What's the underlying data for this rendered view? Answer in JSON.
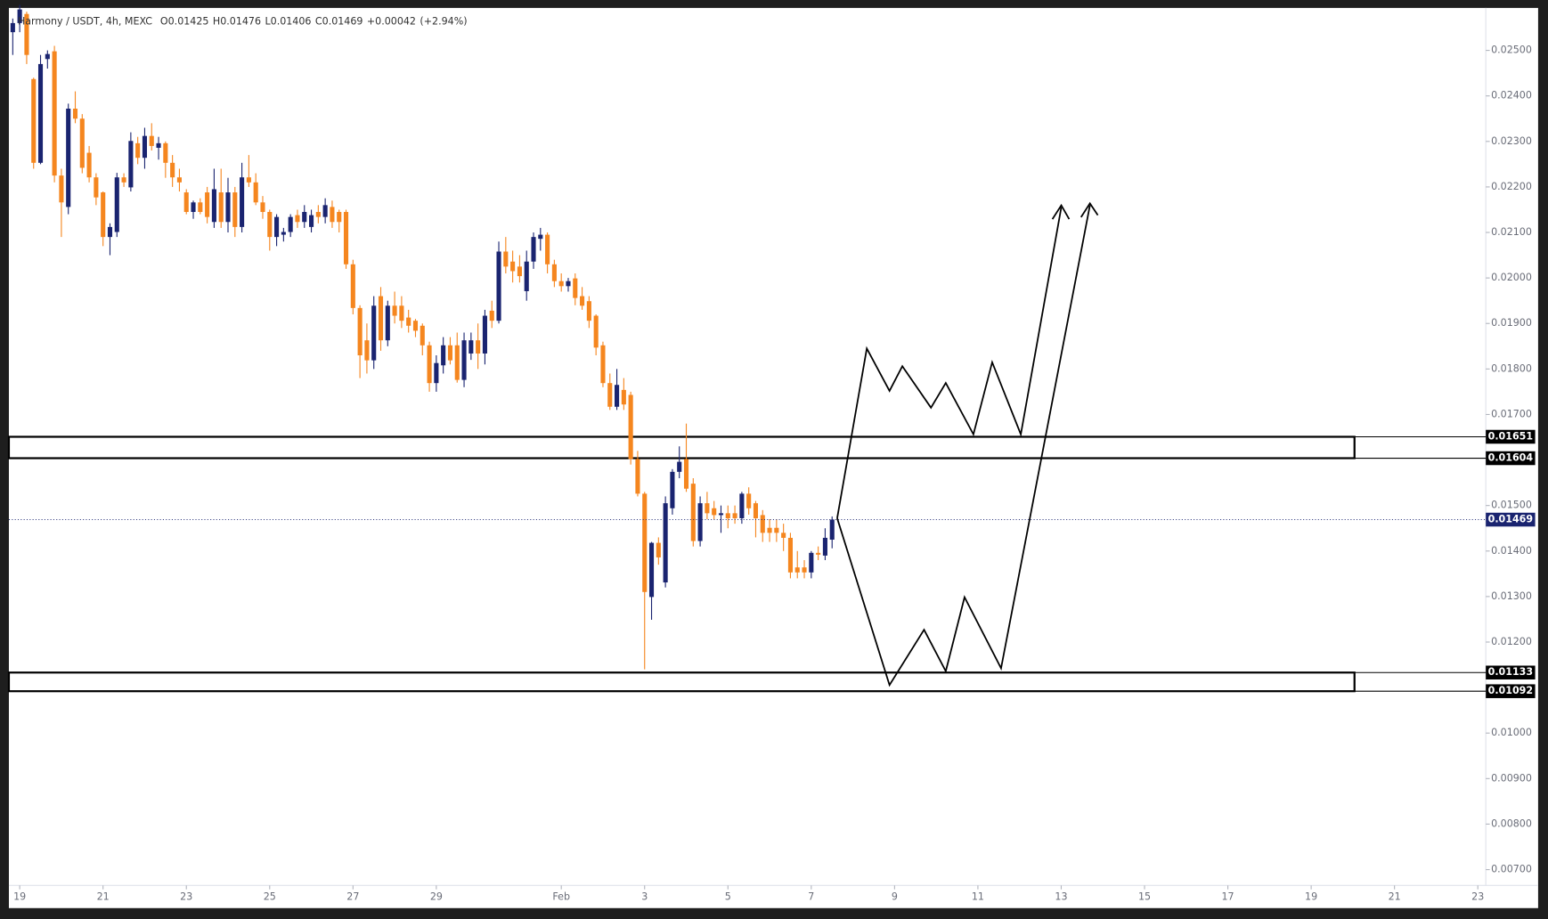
{
  "chart_data": {
    "type": "candlestick",
    "symbol": "Harmony / USDT, 4h, MEXC",
    "ohlc_labels": [
      "O",
      "H",
      "L",
      "C"
    ],
    "change": "+0.00042",
    "change_pct": "(+2.94%)",
    "up_color": "#1a2470",
    "down_color": "#f5861f",
    "xlim": [
      -0.56,
      212.15
    ],
    "xticks": [
      {
        "value": 1,
        "label": "19"
      },
      {
        "value": 13,
        "label": "21"
      },
      {
        "value": 25,
        "label": "23"
      },
      {
        "value": 37,
        "label": "25"
      },
      {
        "value": 49,
        "label": "27"
      },
      {
        "value": 61,
        "label": "29"
      },
      {
        "value": 79,
        "label": "Feb"
      },
      {
        "value": 91,
        "label": "3"
      },
      {
        "value": 103,
        "label": "5"
      },
      {
        "value": 115,
        "label": "7"
      },
      {
        "value": 127,
        "label": "9"
      },
      {
        "value": 139,
        "label": "11"
      },
      {
        "value": 151,
        "label": "13"
      },
      {
        "value": 163,
        "label": "15"
      },
      {
        "value": 175,
        "label": "17"
      },
      {
        "value": 187,
        "label": "19"
      },
      {
        "value": 199,
        "label": "21"
      },
      {
        "value": 211,
        "label": "23"
      }
    ],
    "ylim": [
      0.006653,
      0.025933
    ],
    "yticks": [
      {
        "value": 0.025,
        "label": "0.02500"
      },
      {
        "value": 0.024,
        "label": "0.02400"
      },
      {
        "value": 0.023,
        "label": "0.02300"
      },
      {
        "value": 0.022,
        "label": "0.02200"
      },
      {
        "value": 0.021,
        "label": "0.02100"
      },
      {
        "value": 0.02,
        "label": "0.02000"
      },
      {
        "value": 0.019,
        "label": "0.01900"
      },
      {
        "value": 0.018,
        "label": "0.01800"
      },
      {
        "value": 0.017,
        "label": "0.01700"
      },
      {
        "value": 0.015,
        "label": "0.01500"
      },
      {
        "value": 0.014,
        "label": "0.01400"
      },
      {
        "value": 0.013,
        "label": "0.01300"
      },
      {
        "value": 0.012,
        "label": "0.01200"
      },
      {
        "value": 0.01,
        "label": "0.01000"
      },
      {
        "value": 0.009,
        "label": "0.00900"
      },
      {
        "value": 0.008,
        "label": "0.00800"
      },
      {
        "value": 0.007,
        "label": "0.00700"
      }
    ],
    "zones": [
      [
        0.01604,
        0.01651
      ],
      [
        0.01092,
        0.01133
      ]
    ],
    "ohlc": [
      [
        0.0254,
        0.0257,
        0.0249,
        0.0256
      ],
      [
        0.0256,
        0.026,
        0.0254,
        0.0259
      ],
      [
        0.0258,
        0.02585,
        0.0247,
        0.0249
      ],
      [
        0.02437,
        0.0244,
        0.0224,
        0.02253
      ],
      [
        0.02253,
        0.0249,
        0.0225,
        0.0247
      ],
      [
        0.02481,
        0.025,
        0.0246,
        0.02492
      ],
      [
        0.02498,
        0.0251,
        0.0221,
        0.02225
      ],
      [
        0.02225,
        0.0224,
        0.0209,
        0.02166
      ],
      [
        0.02156,
        0.02383,
        0.0214,
        0.02372
      ],
      [
        0.02372,
        0.0241,
        0.0234,
        0.0235
      ],
      [
        0.0235,
        0.0236,
        0.0223,
        0.02242
      ],
      [
        0.02275,
        0.0229,
        0.0221,
        0.02221
      ],
      [
        0.02221,
        0.0223,
        0.0216,
        0.02177
      ],
      [
        0.02188,
        0.0219,
        0.0207,
        0.0209
      ],
      [
        0.0209,
        0.0212,
        0.0205,
        0.02112
      ],
      [
        0.02101,
        0.02231,
        0.0209,
        0.02221
      ],
      [
        0.02221,
        0.0223,
        0.022,
        0.0221
      ],
      [
        0.02199,
        0.0232,
        0.0219,
        0.02301
      ],
      [
        0.02296,
        0.0231,
        0.0225,
        0.02264
      ],
      [
        0.02264,
        0.0233,
        0.0224,
        0.02312
      ],
      [
        0.02312,
        0.0234,
        0.0228,
        0.0229
      ],
      [
        0.02286,
        0.0231,
        0.0226,
        0.02296
      ],
      [
        0.02296,
        0.023,
        0.0222,
        0.02253
      ],
      [
        0.02253,
        0.0227,
        0.022,
        0.02221
      ],
      [
        0.02221,
        0.0224,
        0.0219,
        0.0221
      ],
      [
        0.02188,
        0.02195,
        0.0214,
        0.02145
      ],
      [
        0.02145,
        0.0217,
        0.0213,
        0.02166
      ],
      [
        0.02166,
        0.02175,
        0.0214,
        0.02145
      ],
      [
        0.02188,
        0.022,
        0.0212,
        0.02134
      ],
      [
        0.02123,
        0.0224,
        0.0211,
        0.02195
      ],
      [
        0.02188,
        0.0224,
        0.0211,
        0.02123
      ],
      [
        0.02123,
        0.0222,
        0.021,
        0.02188
      ],
      [
        0.02188,
        0.022,
        0.0209,
        0.02112
      ],
      [
        0.02112,
        0.02253,
        0.021,
        0.02221
      ],
      [
        0.02221,
        0.0227,
        0.022,
        0.0221
      ],
      [
        0.0221,
        0.0223,
        0.0216,
        0.02166
      ],
      [
        0.02166,
        0.0218,
        0.0213,
        0.02145
      ],
      [
        0.02145,
        0.0215,
        0.0206,
        0.0209
      ],
      [
        0.0209,
        0.0214,
        0.0207,
        0.02134
      ],
      [
        0.02095,
        0.0211,
        0.0208,
        0.02101
      ],
      [
        0.02101,
        0.0214,
        0.0209,
        0.02134
      ],
      [
        0.02138,
        0.0215,
        0.0211,
        0.02123
      ],
      [
        0.02123,
        0.0216,
        0.0211,
        0.02145
      ],
      [
        0.02112,
        0.0215,
        0.021,
        0.02138
      ],
      [
        0.02145,
        0.0216,
        0.0212,
        0.02134
      ],
      [
        0.02134,
        0.02175,
        0.0212,
        0.0216
      ],
      [
        0.02156,
        0.0217,
        0.0211,
        0.02123
      ],
      [
        0.02145,
        0.0215,
        0.021,
        0.02123
      ],
      [
        0.02145,
        0.0215,
        0.0202,
        0.0203
      ],
      [
        0.0203,
        0.0204,
        0.0192,
        0.01934
      ],
      [
        0.01934,
        0.0194,
        0.0178,
        0.0183
      ],
      [
        0.01863,
        0.019,
        0.0179,
        0.01819
      ],
      [
        0.01819,
        0.0196,
        0.018,
        0.01939
      ],
      [
        0.0196,
        0.0198,
        0.0184,
        0.01863
      ],
      [
        0.01863,
        0.0195,
        0.0185,
        0.01939
      ],
      [
        0.01939,
        0.0197,
        0.019,
        0.01917
      ],
      [
        0.01939,
        0.0196,
        0.0189,
        0.01906
      ],
      [
        0.01913,
        0.0193,
        0.0188,
        0.01895
      ],
      [
        0.01906,
        0.0191,
        0.0187,
        0.01884
      ],
      [
        0.01895,
        0.019,
        0.0183,
        0.01852
      ],
      [
        0.01852,
        0.0186,
        0.0175,
        0.01769
      ],
      [
        0.01769,
        0.0183,
        0.0175,
        0.01813
      ],
      [
        0.01808,
        0.0187,
        0.0179,
        0.01852
      ],
      [
        0.01852,
        0.0187,
        0.0181,
        0.01819
      ],
      [
        0.01852,
        0.0188,
        0.0177,
        0.01776
      ],
      [
        0.01776,
        0.0188,
        0.0176,
        0.01863
      ],
      [
        0.01834,
        0.0188,
        0.0182,
        0.01863
      ],
      [
        0.01863,
        0.019,
        0.018,
        0.01834
      ],
      [
        0.01834,
        0.0193,
        0.0181,
        0.01917
      ],
      [
        0.01928,
        0.0195,
        0.0189,
        0.01906
      ],
      [
        0.01906,
        0.0208,
        0.019,
        0.02058
      ],
      [
        0.02058,
        0.0209,
        0.0201,
        0.02025
      ],
      [
        0.02036,
        0.0206,
        0.0199,
        0.02015
      ],
      [
        0.02025,
        0.0205,
        0.0199,
        0.02004
      ],
      [
        0.01971,
        0.0206,
        0.0195,
        0.02036
      ],
      [
        0.02036,
        0.021,
        0.0202,
        0.0209
      ],
      [
        0.02086,
        0.0211,
        0.0206,
        0.02095
      ],
      [
        0.02095,
        0.021,
        0.0201,
        0.0203
      ],
      [
        0.0203,
        0.0204,
        0.0198,
        0.01993
      ],
      [
        0.01993,
        0.0201,
        0.0197,
        0.01982
      ],
      [
        0.01982,
        0.02,
        0.0197,
        0.01993
      ],
      [
        0.01999,
        0.0201,
        0.0194,
        0.01956
      ],
      [
        0.0196,
        0.0198,
        0.0193,
        0.01939
      ],
      [
        0.01949,
        0.0196,
        0.0189,
        0.01906
      ],
      [
        0.01917,
        0.0192,
        0.0183,
        0.01847
      ],
      [
        0.01852,
        0.0186,
        0.0176,
        0.01769
      ],
      [
        0.01769,
        0.0179,
        0.0171,
        0.01717
      ],
      [
        0.01717,
        0.018,
        0.0171,
        0.01765
      ],
      [
        0.01754,
        0.0178,
        0.0171,
        0.01722
      ],
      [
        0.01743,
        0.0175,
        0.0159,
        0.01602
      ],
      [
        0.01602,
        0.0162,
        0.0152,
        0.01526
      ],
      [
        0.01526,
        0.0153,
        0.0114,
        0.0131
      ],
      [
        0.01299,
        0.0142,
        0.01249,
        0.01418
      ],
      [
        0.01418,
        0.0143,
        0.0137,
        0.01386
      ],
      [
        0.01331,
        0.0152,
        0.0132,
        0.01505
      ],
      [
        0.01494,
        0.0158,
        0.0148,
        0.01574
      ],
      [
        0.01574,
        0.0163,
        0.0156,
        0.01596
      ],
      [
        0.01602,
        0.0168,
        0.0153,
        0.01537
      ],
      [
        0.01548,
        0.0156,
        0.0141,
        0.01422
      ],
      [
        0.01422,
        0.0152,
        0.0141,
        0.01505
      ],
      [
        0.01505,
        0.0153,
        0.0147,
        0.01483
      ],
      [
        0.01494,
        0.0151,
        0.0147,
        0.01479
      ],
      [
        0.01479,
        0.015,
        0.0144,
        0.01483
      ],
      [
        0.01483,
        0.015,
        0.0145,
        0.01472
      ],
      [
        0.01483,
        0.015,
        0.0146,
        0.01472
      ],
      [
        0.01472,
        0.0153,
        0.0146,
        0.01526
      ],
      [
        0.01526,
        0.0154,
        0.0148,
        0.01494
      ],
      [
        0.01505,
        0.0151,
        0.0143,
        0.01472
      ],
      [
        0.01479,
        0.0149,
        0.0142,
        0.0144
      ],
      [
        0.01451,
        0.0147,
        0.0142,
        0.0144
      ],
      [
        0.01451,
        0.0147,
        0.0142,
        0.0144
      ],
      [
        0.0144,
        0.0146,
        0.014,
        0.01429
      ],
      [
        0.01429,
        0.0144,
        0.0134,
        0.01353
      ],
      [
        0.01364,
        0.014,
        0.0134,
        0.01353
      ],
      [
        0.01364,
        0.0138,
        0.0134,
        0.01353
      ],
      [
        0.01353,
        0.014,
        0.0134,
        0.01396
      ],
      [
        0.01396,
        0.0141,
        0.0138,
        0.01392
      ],
      [
        0.0139,
        0.0145,
        0.0138,
        0.01429
      ],
      [
        0.01425,
        0.01476,
        0.01406,
        0.01469
      ]
    ]
  }
}
